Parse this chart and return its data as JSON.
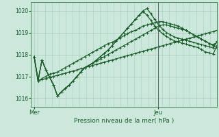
{
  "bg_color": "#cce8dc",
  "grid_color": "#aaccbb",
  "line_color": "#1a5c2a",
  "title": "Pression niveau de la mer( hPa )",
  "ylim": [
    1015.6,
    1020.4
  ],
  "yticks": [
    1016,
    1017,
    1018,
    1019,
    1020
  ],
  "ytick_labels": [
    "1016",
    "1017",
    "1018",
    "1019",
    "1020"
  ],
  "mer_x": 0.0,
  "jeu_x": 2.0,
  "xlim": [
    -0.05,
    2.95
  ],
  "series": [
    [
      1017.9,
      1016.8,
      1016.9,
      1017.0,
      1017.1,
      1017.15,
      1017.2,
      1017.3,
      1017.4,
      1017.5,
      1017.6,
      1017.7,
      1017.8,
      1017.9,
      1018.0,
      1018.1,
      1018.2,
      1018.3,
      1018.4,
      1018.5,
      1018.55,
      1018.65,
      1018.75,
      1018.85,
      1018.95,
      1019.05,
      1019.1,
      1019.2,
      1019.3,
      1019.35,
      1019.4,
      1019.45,
      1019.5,
      1019.5,
      1019.45,
      1019.4,
      1019.35,
      1019.3,
      1019.2,
      1019.1,
      1019.0,
      1018.9,
      1018.8,
      1018.7,
      1018.6,
      1018.5,
      1018.4,
      1018.3
    ],
    [
      1017.9,
      1016.8,
      1017.75,
      1017.3,
      1016.95,
      1016.6,
      1016.1,
      1016.3,
      1016.45,
      1016.6,
      1016.8,
      1017.0,
      1017.2,
      1017.4,
      1017.5,
      1017.6,
      1017.7,
      1017.8,
      1017.9,
      1018.0,
      1018.1,
      1018.2,
      1018.3,
      1018.4,
      1018.5,
      1018.6,
      1018.7,
      1018.8,
      1018.9,
      1019.0,
      1019.1,
      1019.2,
      1019.3,
      1019.35,
      1019.35,
      1019.3,
      1019.25,
      1019.2,
      1019.15,
      1019.1,
      1019.0,
      1018.9,
      1018.8,
      1018.7,
      1018.6,
      1018.5,
      1018.45,
      1018.55
    ],
    [
      1017.9,
      1016.8,
      1017.75,
      1017.3,
      1016.95,
      1016.6,
      1016.1,
      1016.3,
      1016.45,
      1016.6,
      1016.8,
      1017.0,
      1017.2,
      1017.4,
      1017.5,
      1017.6,
      1017.75,
      1017.9,
      1018.05,
      1018.2,
      1018.4,
      1018.6,
      1018.8,
      1019.0,
      1019.2,
      1019.4,
      1019.6,
      1019.8,
      1020.0,
      1020.1,
      1019.85,
      1019.6,
      1019.35,
      1019.15,
      1019.0,
      1018.9,
      1018.8,
      1018.75,
      1018.7,
      1018.65,
      1018.6,
      1018.55,
      1018.5,
      1018.45,
      1018.4,
      1018.35,
      1018.3,
      1018.6
    ],
    [
      1017.9,
      1016.8,
      1017.75,
      1017.3,
      1016.95,
      1016.6,
      1016.1,
      1016.3,
      1016.45,
      1016.6,
      1016.8,
      1017.0,
      1017.2,
      1017.4,
      1017.5,
      1017.6,
      1017.75,
      1017.9,
      1018.05,
      1018.2,
      1018.4,
      1018.6,
      1018.8,
      1019.0,
      1019.2,
      1019.4,
      1019.6,
      1019.8,
      1019.95,
      1019.8,
      1019.55,
      1019.3,
      1019.1,
      1018.95,
      1018.82,
      1018.72,
      1018.62,
      1018.57,
      1018.52,
      1018.47,
      1018.42,
      1018.37,
      1018.32,
      1018.22,
      1018.12,
      1018.07,
      1018.02,
      1018.42
    ],
    [
      1017.9,
      1016.8,
      1016.85,
      1016.9,
      1016.95,
      1017.0,
      1017.05,
      1017.1,
      1017.15,
      1017.2,
      1017.25,
      1017.3,
      1017.35,
      1017.4,
      1017.45,
      1017.5,
      1017.55,
      1017.6,
      1017.65,
      1017.7,
      1017.75,
      1017.8,
      1017.85,
      1017.9,
      1017.95,
      1018.0,
      1018.05,
      1018.1,
      1018.15,
      1018.2,
      1018.25,
      1018.3,
      1018.35,
      1018.4,
      1018.45,
      1018.5,
      1018.55,
      1018.6,
      1018.65,
      1018.7,
      1018.75,
      1018.8,
      1018.85,
      1018.9,
      1018.95,
      1019.0,
      1019.05,
      1019.1
    ]
  ],
  "jeu_line_color": "#556666",
  "spine_color": "#2d7a3a"
}
